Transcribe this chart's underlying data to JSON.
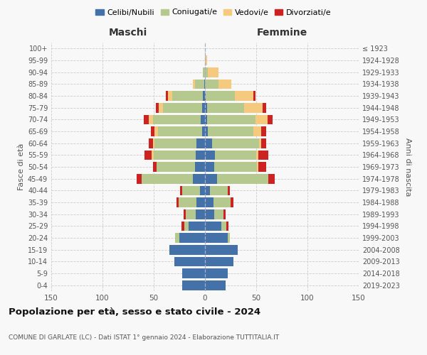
{
  "age_groups": [
    "0-4",
    "5-9",
    "10-14",
    "15-19",
    "20-24",
    "25-29",
    "30-34",
    "35-39",
    "40-44",
    "45-49",
    "50-54",
    "55-59",
    "60-64",
    "65-69",
    "70-74",
    "75-79",
    "80-84",
    "85-89",
    "90-94",
    "95-99",
    "100+"
  ],
  "birth_years": [
    "2019-2023",
    "2014-2018",
    "2009-2013",
    "2004-2008",
    "1999-2003",
    "1994-1998",
    "1989-1993",
    "1984-1988",
    "1979-1983",
    "1974-1978",
    "1969-1973",
    "1964-1968",
    "1959-1963",
    "1954-1958",
    "1949-1953",
    "1944-1948",
    "1939-1943",
    "1934-1938",
    "1929-1933",
    "1924-1928",
    "≤ 1923"
  ],
  "maschi": {
    "celibi": [
      22,
      22,
      30,
      35,
      25,
      16,
      9,
      8,
      5,
      12,
      10,
      9,
      8,
      3,
      4,
      3,
      2,
      1,
      0,
      0,
      0
    ],
    "coniugati": [
      0,
      0,
      0,
      0,
      4,
      4,
      10,
      18,
      17,
      50,
      37,
      41,
      41,
      43,
      47,
      38,
      30,
      9,
      2,
      0,
      0
    ],
    "vedovi": [
      0,
      0,
      0,
      0,
      0,
      0,
      0,
      0,
      0,
      0,
      0,
      2,
      2,
      3,
      4,
      4,
      4,
      2,
      0,
      0,
      0
    ],
    "divorziati": [
      0,
      0,
      0,
      0,
      0,
      3,
      2,
      2,
      2,
      5,
      4,
      7,
      4,
      4,
      5,
      3,
      2,
      0,
      0,
      0,
      0
    ]
  },
  "femmine": {
    "nubili": [
      20,
      22,
      28,
      32,
      22,
      16,
      9,
      8,
      5,
      12,
      9,
      10,
      7,
      3,
      2,
      2,
      1,
      0,
      0,
      0,
      0
    ],
    "coniugate": [
      0,
      0,
      0,
      0,
      2,
      5,
      9,
      17,
      17,
      50,
      42,
      40,
      46,
      44,
      47,
      36,
      28,
      13,
      3,
      1,
      0
    ],
    "vedove": [
      0,
      0,
      0,
      0,
      0,
      0,
      0,
      0,
      0,
      0,
      1,
      2,
      2,
      8,
      12,
      18,
      18,
      13,
      10,
      1,
      0
    ],
    "divorziate": [
      0,
      0,
      0,
      0,
      0,
      2,
      2,
      3,
      2,
      6,
      8,
      10,
      5,
      5,
      5,
      4,
      2,
      0,
      0,
      0,
      0
    ]
  },
  "colors": {
    "celibi": "#4472a8",
    "coniugati": "#b5c98e",
    "vedovi": "#f5c97e",
    "divorziati": "#cc2222"
  },
  "legend_labels": [
    "Celibi/Nubili",
    "Coniugati/e",
    "Vedovi/e",
    "Divorziati/e"
  ],
  "title": "Popolazione per età, sesso e stato civile - 2024",
  "subtitle": "COMUNE DI GARLATE (LC) - Dati ISTAT 1° gennaio 2024 - Elaborazione TUTTITALIA.IT",
  "xlim": 150,
  "bg_color": "#f8f8f8",
  "grid_color": "#cccccc"
}
